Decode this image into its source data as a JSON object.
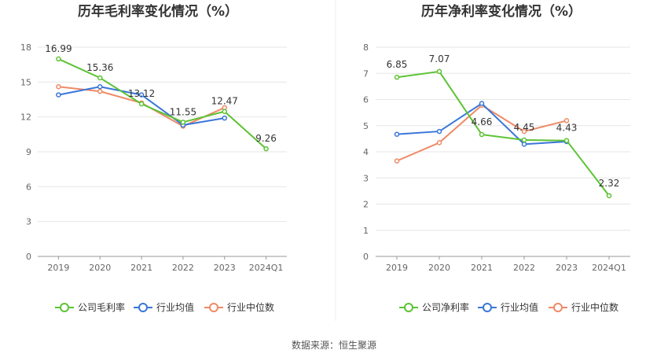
{
  "source": "数据来源：恒生聚源",
  "colors": {
    "company": "#5cc334",
    "avg": "#3a76d8",
    "median": "#ee8a66",
    "grid": "#e6e6e6",
    "axis": "#999999"
  },
  "chart_data": [
    {
      "type": "line",
      "title": "历年毛利率变化情况（%）",
      "categories": [
        "2019",
        "2020",
        "2021",
        "2022",
        "2023",
        "2024Q1"
      ],
      "ylim": [
        0,
        18
      ],
      "yticks": [
        0,
        3,
        6,
        9,
        12,
        15,
        18
      ],
      "series": [
        {
          "key": "company",
          "name": "公司毛利率",
          "values": [
            16.99,
            15.36,
            13.12,
            11.55,
            12.47,
            9.26
          ],
          "labels": [
            "16.99",
            "15.36",
            "13.12",
            "11.55",
            "12.47",
            "9.26"
          ]
        },
        {
          "key": "avg",
          "name": "行业均值",
          "values": [
            13.9,
            14.6,
            13.9,
            11.3,
            11.9,
            null
          ]
        },
        {
          "key": "median",
          "name": "行业中位数",
          "values": [
            14.6,
            14.2,
            13.2,
            11.2,
            12.8,
            null
          ]
        }
      ]
    },
    {
      "type": "line",
      "title": "历年净利率变化情况（%）",
      "categories": [
        "2019",
        "2020",
        "2021",
        "2022",
        "2023",
        "2024Q1"
      ],
      "ylim": [
        0,
        8
      ],
      "yticks": [
        0,
        1,
        2,
        3,
        4,
        5,
        6,
        7,
        8
      ],
      "series": [
        {
          "key": "company",
          "name": "公司净利率",
          "values": [
            6.85,
            7.07,
            4.66,
            4.45,
            4.43,
            2.32
          ],
          "labels": [
            "6.85",
            "7.07",
            "4.66",
            "4.45",
            "4.43",
            "2.32"
          ]
        },
        {
          "key": "avg",
          "name": "行业均值",
          "values": [
            4.67,
            4.78,
            5.85,
            4.29,
            4.39,
            null
          ]
        },
        {
          "key": "median",
          "name": "行业中位数",
          "values": [
            3.65,
            4.35,
            5.78,
            4.78,
            5.19,
            null
          ]
        }
      ]
    }
  ]
}
